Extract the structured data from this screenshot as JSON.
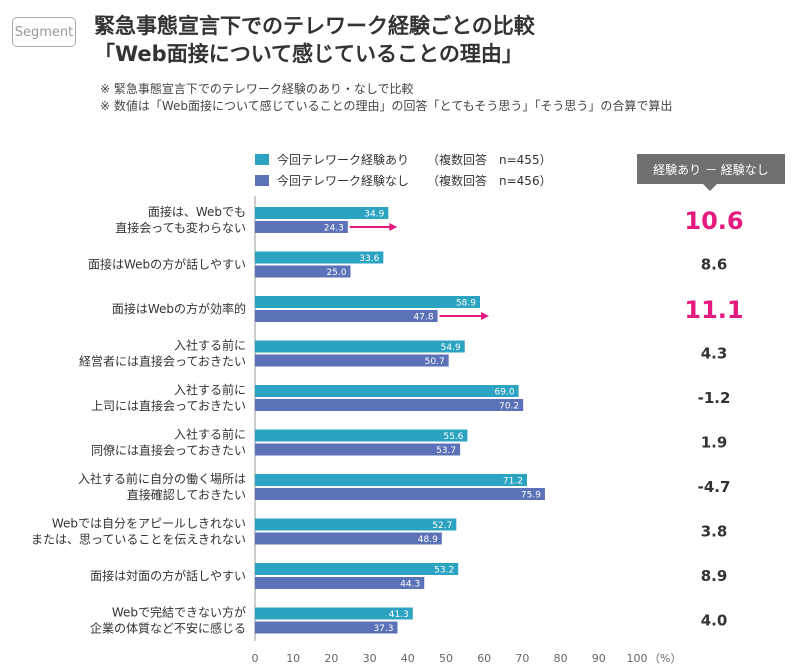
{
  "badge": "Segment",
  "title_lines": [
    "緊急事態宣言下でのテレワーク経験ごとの比較",
    "「Web面接について感じていることの理由」"
  ],
  "notes": [
    "※ 緊急事態宣言下でのテレワーク経験のあり・なしで比較",
    "※ 数値は「Web面接について感じていることの理由」の回答「とてもそう思う」「そう思う」の合算で算出"
  ],
  "legend": [
    {
      "name": "今回テレワーク経験あり",
      "note": "（複数回答　n=455）"
    },
    {
      "name": "今回テレワーク経験なし",
      "note": "（複数回答　n=456）"
    }
  ],
  "diff_header": "経験あり － 経験なし",
  "colors": {
    "series_a": "#2ba3c1",
    "series_b": "#5b72b8",
    "highlight": "#e6197f",
    "diff_text": "#333333",
    "axis": "#999999"
  },
  "chart_data": {
    "type": "bar",
    "orientation": "horizontal",
    "categories": [
      [
        "面接は、Webでも",
        "直接会っても変わらない"
      ],
      [
        "面接はWebの方が話しやすい"
      ],
      [
        "面接はWebの方が効率的"
      ],
      [
        "入社する前に",
        "経営者には直接会っておきたい"
      ],
      [
        "入社する前に",
        "上司には直接会っておきたい"
      ],
      [
        "入社する前に",
        "同僚には直接会っておきたい"
      ],
      [
        "入社する前に自分の働く場所は",
        "直接確認しておきたい"
      ],
      [
        "Webでは自分をアピールしきれない",
        "または、思っていることを伝えきれない"
      ],
      [
        "面接は対面の方が話しやすい"
      ],
      [
        "Webで完結できない方が",
        "企業の体質など不安に感じる"
      ]
    ],
    "series": [
      {
        "name": "今回テレワーク経験あり",
        "values": [
          34.9,
          33.6,
          58.9,
          54.9,
          69.0,
          55.6,
          71.2,
          52.7,
          53.2,
          41.3
        ]
      },
      {
        "name": "今回テレワーク経験なし",
        "values": [
          24.3,
          25.0,
          47.8,
          50.7,
          70.2,
          53.7,
          75.9,
          48.9,
          44.3,
          37.3
        ]
      }
    ],
    "value_labels": [
      [
        "34.9",
        "33.6",
        "58.9",
        "54.9",
        "69.0",
        "55.6",
        "71.2",
        "52.7",
        "53.2",
        "41.3"
      ],
      [
        "24.3",
        "25.0",
        "47.8",
        "50.7",
        "70.2",
        "53.7",
        "75.9",
        "48.9",
        "44.3",
        "37.3"
      ]
    ],
    "diff": [
      "10.6",
      "8.6",
      "11.1",
      "4.3",
      "-1.2",
      "1.9",
      "-4.7",
      "3.8",
      "8.9",
      "4.0"
    ],
    "highlighted": [
      0,
      2
    ],
    "xlim": [
      0,
      100
    ],
    "xticks": [
      0,
      10,
      20,
      30,
      40,
      50,
      60,
      70,
      80,
      90,
      100
    ],
    "xunit": "（%）"
  }
}
